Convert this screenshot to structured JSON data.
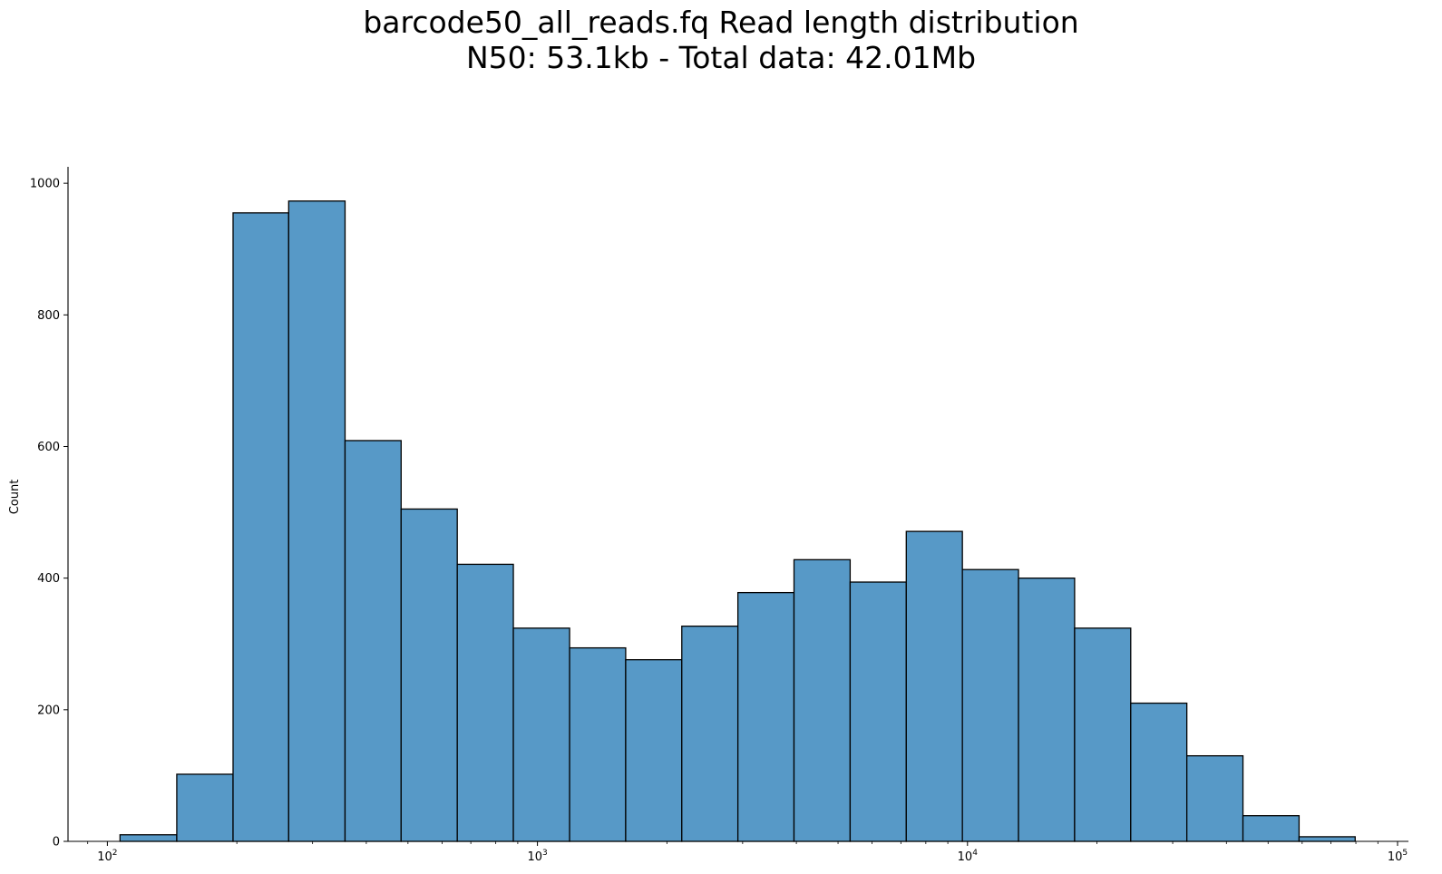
{
  "chart_data": {
    "type": "bar",
    "title": "barcode50_all_reads.fq Read length distribution",
    "subtitle": "N50: 53.1kb - Total data: 42.01Mb",
    "xlabel": "",
    "ylabel": "Count",
    "x_scale": "log",
    "xlim": [
      81,
      106000
    ],
    "ylim": [
      0,
      1025
    ],
    "grid": false,
    "bar_color": "#5799c7",
    "edge_color": "#000000",
    "y_ticks": [
      0,
      200,
      400,
      600,
      800,
      1000
    ],
    "x_ticks": [
      {
        "value": 100,
        "base": "10",
        "exp": "2"
      },
      {
        "value": 1000,
        "base": "10",
        "exp": "3"
      },
      {
        "value": 10000,
        "base": "10",
        "exp": "4"
      },
      {
        "value": 100000,
        "base": "10",
        "exp": "5"
      }
    ],
    "bins": [
      {
        "x0": 107,
        "x1": 145,
        "count": 10
      },
      {
        "x0": 145,
        "x1": 196,
        "count": 102
      },
      {
        "x0": 196,
        "x1": 264,
        "count": 955
      },
      {
        "x0": 264,
        "x1": 357,
        "count": 973
      },
      {
        "x0": 357,
        "x1": 482,
        "count": 609
      },
      {
        "x0": 482,
        "x1": 651,
        "count": 505
      },
      {
        "x0": 651,
        "x1": 879,
        "count": 421
      },
      {
        "x0": 879,
        "x1": 1188,
        "count": 324
      },
      {
        "x0": 1188,
        "x1": 1604,
        "count": 294
      },
      {
        "x0": 1604,
        "x1": 2166,
        "count": 276
      },
      {
        "x0": 2166,
        "x1": 2925,
        "count": 327
      },
      {
        "x0": 2925,
        "x1": 3950,
        "count": 378
      },
      {
        "x0": 3950,
        "x1": 5335,
        "count": 428
      },
      {
        "x0": 5335,
        "x1": 7205,
        "count": 394
      },
      {
        "x0": 7205,
        "x1": 9730,
        "count": 471
      },
      {
        "x0": 9730,
        "x1": 13140,
        "count": 413
      },
      {
        "x0": 13140,
        "x1": 17745,
        "count": 400
      },
      {
        "x0": 17745,
        "x1": 23965,
        "count": 324
      },
      {
        "x0": 23965,
        "x1": 32360,
        "count": 210
      },
      {
        "x0": 32360,
        "x1": 43705,
        "count": 130
      },
      {
        "x0": 43705,
        "x1": 59020,
        "count": 39
      },
      {
        "x0": 59020,
        "x1": 79700,
        "count": 7
      }
    ]
  }
}
